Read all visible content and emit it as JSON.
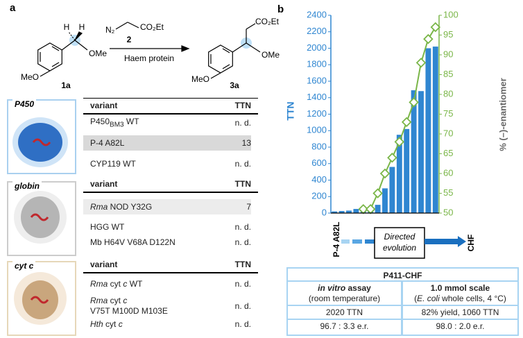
{
  "panel_a": {
    "label": "a",
    "scheme": {
      "reagent": "N₂",
      "reagent_ester": "CO₂Et",
      "reagent_id": "2",
      "condition": "Haem protein",
      "sm_left": "MeO",
      "sm_right": "OMe",
      "h1": "H",
      "h2": "H",
      "sm_id": "1a",
      "pr_left": "MeO",
      "pr_right": "OMe",
      "pr_ester": "CO₂Et",
      "pr_id": "3a"
    },
    "tables": [
      {
        "label": "P450",
        "header": [
          "variant",
          "TTN"
        ],
        "rows": [
          {
            "variant": [
              "P450",
              "BM3",
              " WT"
            ],
            "ttn": "n. d."
          },
          {
            "variant": [
              "P-4 A82L"
            ],
            "ttn": 13
          },
          {
            "variant": [
              "CYP119 WT"
            ],
            "ttn": "n. d."
          }
        ]
      },
      {
        "label": "globin",
        "header": [
          "variant",
          "TTN"
        ],
        "rows": [
          {
            "variant": [
              "Rma",
              " NOD Y32G"
            ],
            "ttn": 7
          },
          {
            "variant": [
              "HGG WT"
            ],
            "ttn": "n. d."
          },
          {
            "variant": [
              "Mb H64V V68A D122N"
            ],
            "ttn": "n. d."
          }
        ]
      },
      {
        "label": "cyt c",
        "header": [
          "variant",
          "TTN"
        ],
        "rows": [
          {
            "variant": [
              "Rma",
              " cyt ",
              "c",
              " WT"
            ],
            "ttn": "n. d."
          },
          {
            "variant": [
              "Rma",
              " cyt ",
              "c",
              "V75T M100D M103E"
            ],
            "ttn": "n. d."
          },
          {
            "variant": [
              "Hth",
              " cyt ",
              "c"
            ],
            "ttn": "n. d."
          }
        ]
      }
    ]
  },
  "chart_data": {
    "type": "bar",
    "label": "b",
    "categories": [
      null,
      null,
      null,
      null,
      null,
      null,
      null,
      null,
      null,
      null,
      null,
      null,
      null,
      null,
      null
    ],
    "series": [
      {
        "type": "bar",
        "color": "#2f86d1",
        "values": [
          20,
          25,
          30,
          50,
          60,
          60,
          100,
          300,
          560,
          950,
          1020,
          1490,
          1480,
          2000,
          2020
        ]
      },
      {
        "type": "line",
        "axis": "y2",
        "color": "#7ab648",
        "values": [
          null,
          null,
          null,
          null,
          51,
          51,
          55,
          60,
          64,
          68,
          73,
          78,
          88,
          94,
          97
        ]
      }
    ],
    "ylabel": "TTN",
    "y2label": "% (–)-enantiomer",
    "ylim": [
      0,
      2400
    ],
    "yticks": [
      0,
      200,
      400,
      600,
      800,
      1000,
      1200,
      1400,
      1600,
      1800,
      2000,
      2200,
      2400
    ],
    "y2lim": [
      50,
      100
    ],
    "y2ticks": [
      50,
      55,
      60,
      65,
      70,
      75,
      80,
      85,
      90,
      95,
      100
    ],
    "annotations": [
      "P-4 A82L",
      "Directed evolution",
      "CHF"
    ]
  },
  "panel_b": {
    "title": "P411-CHF",
    "left": {
      "title": [
        "in vitro",
        " assay"
      ],
      "subtitle": "(room temperature)",
      "ttn": "2020 TTN",
      "er": "96.7 : 3.3 e.r."
    },
    "right": {
      "title": "1.0 mmol scale",
      "subtitle": [
        "(",
        "E. coli",
        " whole cells, 4 °C)"
      ],
      "ttn": "82% yield, 1060 TTN",
      "er": "98.0 : 2.0 e.r."
    }
  }
}
